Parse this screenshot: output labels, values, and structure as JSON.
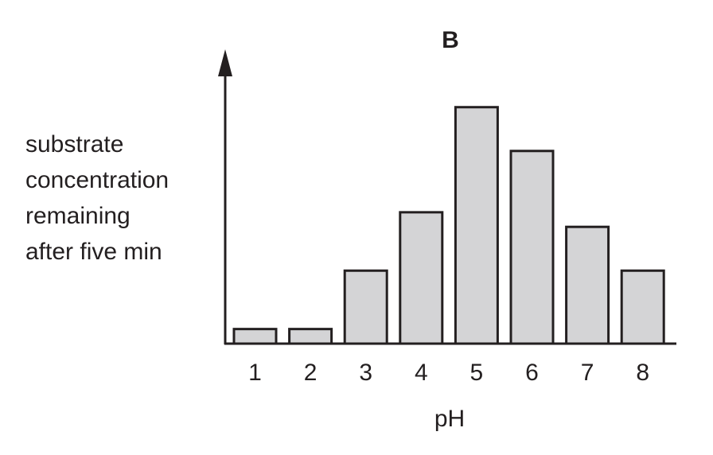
{
  "chart_data": {
    "type": "bar",
    "title": "B",
    "xlabel": "pH",
    "ylabel_lines": [
      "substrate",
      "concentration",
      "remaining",
      "after five min"
    ],
    "categories": [
      "1",
      "2",
      "3",
      "4",
      "5",
      "6",
      "7",
      "8"
    ],
    "values": [
      5,
      5,
      25,
      45,
      81,
      66,
      40,
      25
    ],
    "ylim": [
      0,
      100
    ],
    "y_units": "relative (no scale shown)",
    "grid": false,
    "bar_color": "#d4d4d6",
    "edge_color": "#231f20"
  }
}
